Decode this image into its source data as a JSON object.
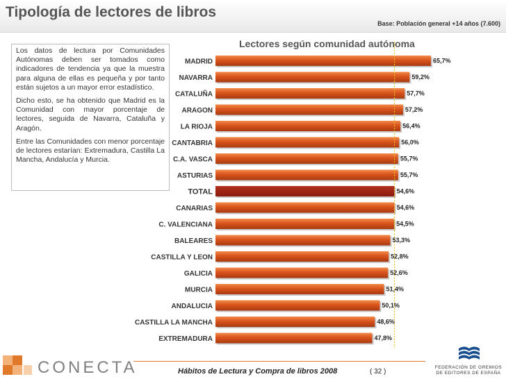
{
  "header": {
    "title": "Tipología de lectores de libros",
    "base": "Base: Población general +14 años (7.600)"
  },
  "textbox": {
    "p1": "Los datos de lectura por Comunidades Autónomas deben ser tomados como indicadores de tendencia ya que la muestra para alguna de ellas es pequeña y por tanto están sujetos a un mayor error estadístico.",
    "p2": "Dicho esto, se ha obtenido que Madrid es la Comunidad con mayor porcentaje de lectores, seguida de Navarra, Cataluña y Aragón.",
    "p3": "Entre las Comunidades con menor porcentaje de lectores estarían: Extremadura, Castilla La Mancha, Andalucía y Murcia."
  },
  "chart_data": {
    "type": "bar",
    "orientation": "horizontal",
    "title": "Lectores según comunidad autónoma",
    "categories": [
      "MADRID",
      "NAVARRA",
      "CATALUÑA",
      "ARAGON",
      "LA RIOJA",
      "CANTABRIA",
      "C.A. VASCA",
      "ASTURIAS",
      "TOTAL",
      "CANARIAS",
      "C. VALENCIANA",
      "BALEARES",
      "CASTILLA Y LEON",
      "GALICIA",
      "MURCIA",
      "ANDALUCIA",
      "CASTILLA LA MANCHA",
      "EXTREMADURA"
    ],
    "values": [
      65.7,
      59.2,
      57.7,
      57.2,
      56.4,
      56.0,
      55.7,
      55.7,
      54.6,
      54.6,
      54.5,
      53.3,
      52.8,
      52.6,
      51.4,
      50.1,
      48.6,
      47.8
    ],
    "value_labels": [
      "65,7%",
      "59,2%",
      "57,7%",
      "57,2%",
      "56,4%",
      "56,0%",
      "55,7%",
      "55,7%",
      "54,6%",
      "54,6%",
      "54,5%",
      "53,3%",
      "52,8%",
      "52,6%",
      "51,4%",
      "50,1%",
      "48,6%",
      "47,8%"
    ],
    "highlight": "TOTAL",
    "reference_line": 54.6,
    "xlim": [
      0,
      68
    ],
    "colors": {
      "bar": "#d9541c",
      "bar_light": "#f08a4a",
      "bar_dark": "#a83a10",
      "total": "#8b1a0c",
      "total_light": "#b0301e",
      "reference": "#e8c020"
    }
  },
  "footer": {
    "publication": "Hábitos de Lectura y Compra de libros 2008",
    "page": "( 32 )",
    "brand": "CONECTA",
    "federation": "FEDERACIÓN DE GREMIOS DE EDITORES DE ESPAÑA"
  }
}
